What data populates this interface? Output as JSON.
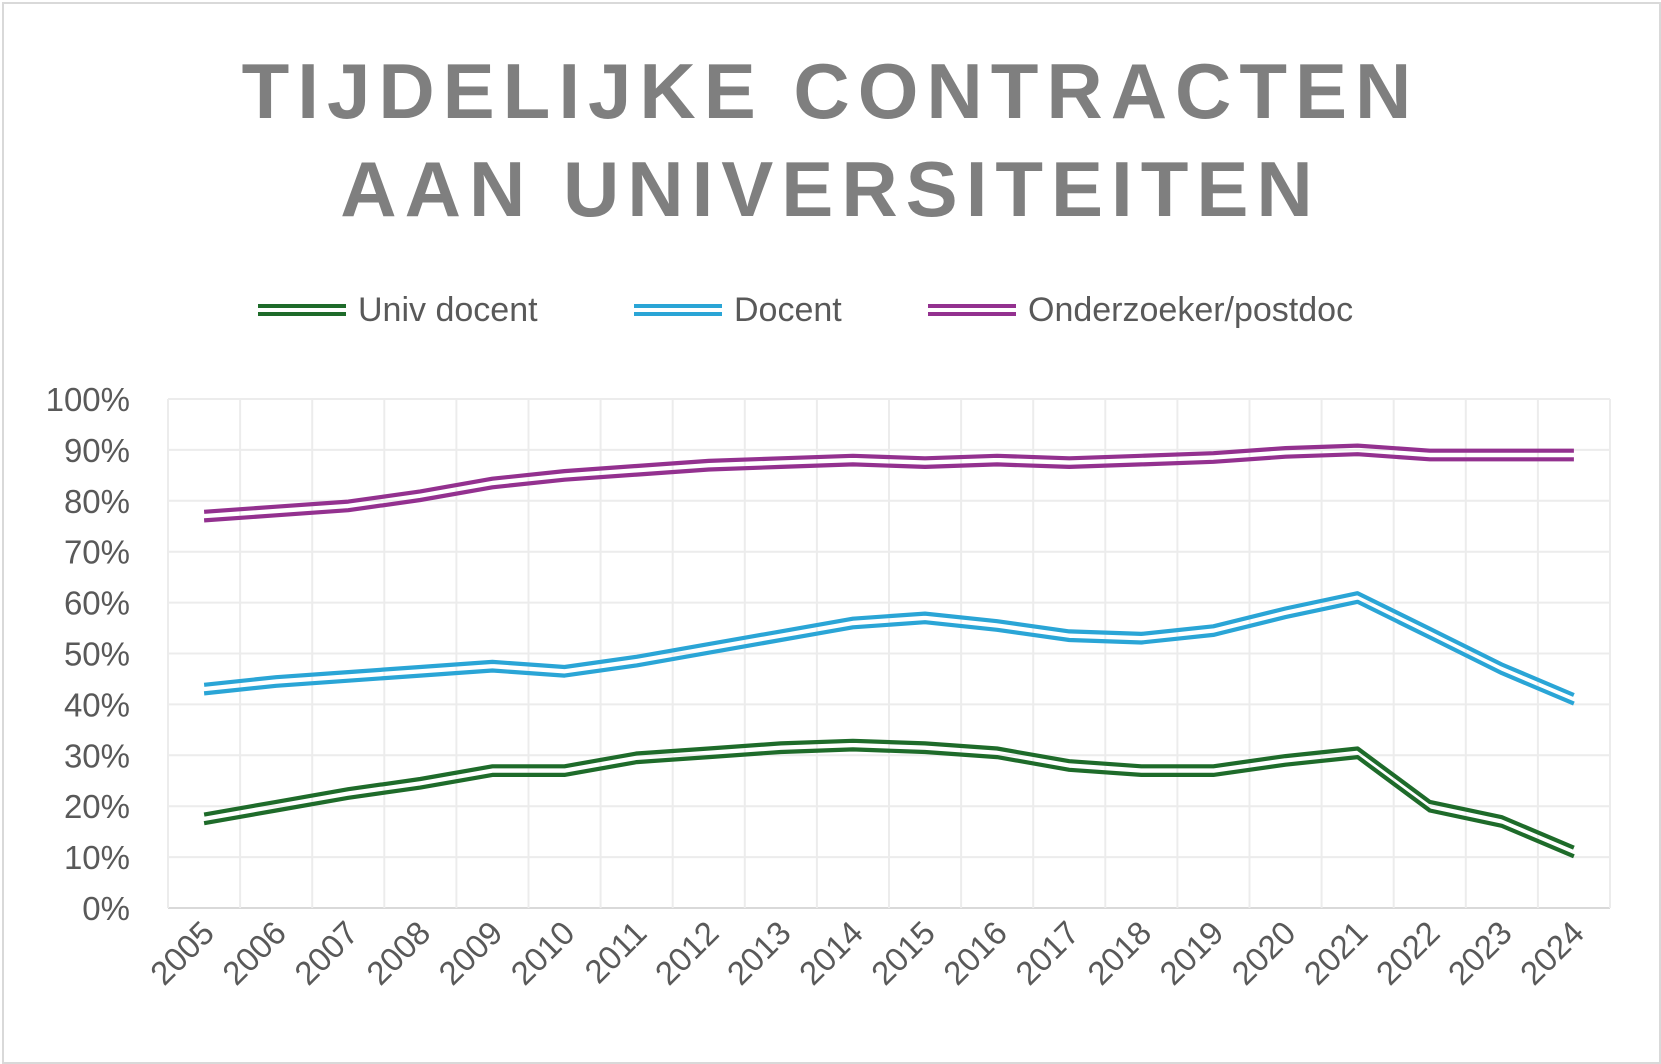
{
  "chart_data": {
    "type": "line",
    "title_lines": [
      "TIJDELIJKE CONTRACTEN",
      "AAN UNIVERSITEITEN"
    ],
    "xlabel": "",
    "ylabel": "",
    "categories": [
      "2005",
      "2006",
      "2007",
      "2008",
      "2009",
      "2010",
      "2011",
      "2012",
      "2013",
      "2014",
      "2015",
      "2016",
      "2017",
      "2018",
      "2019",
      "2020",
      "2021",
      "2022",
      "2023",
      "2024"
    ],
    "ylim": [
      0,
      100
    ],
    "y_ticks": [
      "0%",
      "10%",
      "20%",
      "30%",
      "40%",
      "50%",
      "60%",
      "70%",
      "80%",
      "90%",
      "100%"
    ],
    "grid": true,
    "legend_position": "top",
    "series": [
      {
        "name": "Univ docent",
        "color": "#1e6b2a",
        "values": [
          17.5,
          20,
          22.5,
          24.5,
          27,
          27,
          29.5,
          30.5,
          31.5,
          32,
          31.5,
          30.5,
          28,
          27,
          27,
          29,
          30.5,
          20,
          17,
          11
        ]
      },
      {
        "name": "Docent",
        "color": "#2aa5d6",
        "values": [
          43,
          44.5,
          45.5,
          46.5,
          47.5,
          46.5,
          48.5,
          51,
          53.5,
          56,
          57,
          55.5,
          53.5,
          53,
          54.5,
          58,
          61,
          54,
          47,
          41
        ]
      },
      {
        "name": "Onderzoeker/postdoc",
        "color": "#93318f",
        "values": [
          77,
          78,
          79,
          81,
          83.5,
          85,
          86,
          87,
          87.5,
          88,
          87.5,
          88,
          87.5,
          88,
          88.5,
          89.5,
          90,
          89,
          89,
          89
        ]
      }
    ]
  }
}
